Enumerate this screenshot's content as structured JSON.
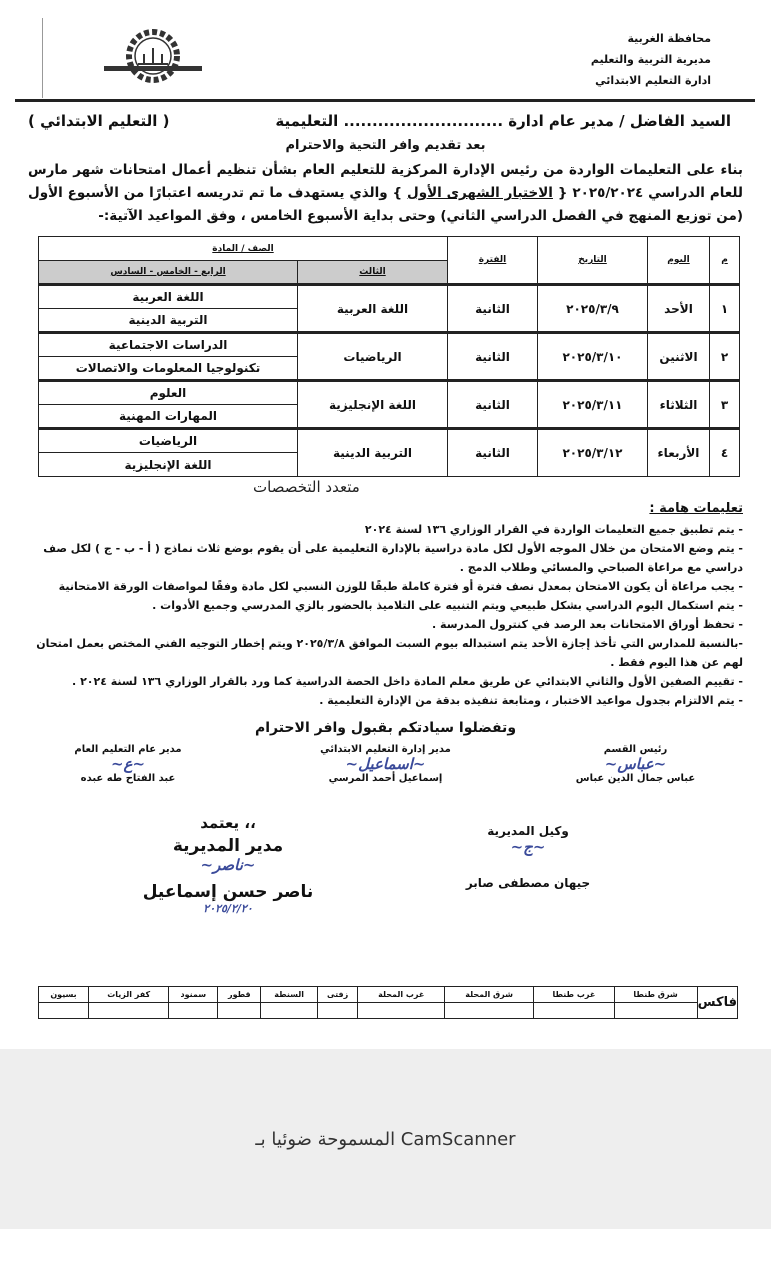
{
  "header": {
    "lines": [
      "محافظة الغربية",
      "مديرية التربية والتعليم",
      "ادارة التعليم الابتدائي"
    ],
    "logo": "directorate-gear-logo"
  },
  "address": {
    "to": "السيد الفاضل / مدير عام ادارة ............................ التعليمية",
    "dept": "( التعليم الابتدائي )"
  },
  "greeting": "بعد تقديم وافر التحية والاحترام",
  "paragraph": {
    "p1": "بناء على التعليمات الواردة من رئيس الإدارة المركزية للتعليم العام بشأن تنظيم أعمال امتحانات شهر مارس للعام الدراسي ٢٠٢٥/٢٠٢٤ {",
    "exam": "الاختبار الشهرى الأول",
    "p2": "} والذي يستهدف ما تم تدريسه اعتبارًا من الأسبوع الأول (من توزيع المنهج في الفصل الدراسي الثاني) وحتى",
    "bold": "بداية الأسبوع الخامس",
    "p3": "، وفق المواعيد الآتية:-"
  },
  "table": {
    "headers": {
      "num": "م",
      "day": "اليوم",
      "date": "التاريخ",
      "period": "الفترة",
      "grade_subject": "الصف / المادة",
      "third": "الثالث",
      "upper": "الرابع - الخامس - السادس"
    },
    "rows": [
      {
        "num": "١",
        "day": "الأحد",
        "date": "٢٠٢٥/٣/٩",
        "period": "الثانية",
        "third": "اللغة العربية",
        "upper": [
          "اللغة العربية",
          "التربية الدينية"
        ]
      },
      {
        "num": "٢",
        "day": "الاثنين",
        "date": "٢٠٢٥/٣/١٠",
        "period": "الثانية",
        "third": "الرياضيات",
        "upper": [
          "الدراسات الاجتماعية",
          "تكنولوجيا المعلومات والاتصالات"
        ]
      },
      {
        "num": "٣",
        "day": "الثلاثاء",
        "date": "٢٠٢٥/٣/١١",
        "period": "الثانية",
        "third": "اللغة الإنجليزية",
        "upper": [
          "العلوم",
          "المهارات المهنية"
        ]
      },
      {
        "num": "٤",
        "day": "الأربعاء",
        "date": "٢٠٢٥/٣/١٢",
        "period": "الثانية",
        "third": "التربية الدينية",
        "upper": [
          "الرياضيات",
          "اللغة الإنجليزية"
        ]
      }
    ]
  },
  "watermark": "متعدد التخصصات",
  "instructions": {
    "title": "تعليمات هامة :",
    "items": [
      "- يتم تطبيق جميع التعليمات الواردة في القرار الوزاري ١٣٦ لسنة ٢٠٢٤",
      "- يتم وضع الامتحان من خلال الموجه الأول لكل مادة دراسية بالإدارة التعليمية على أن يقوم بوضع ثلاث نماذج ( أ - ب - ج ) لكل صف دراسي مع مراعاة الصباحي والمسائي وطلاب الدمج .",
      "- يجب مراعاة أن يكون الامتحان بمعدل نصف فترة أو فترة كاملة طبقًا للوزن النسبي لكل مادة وفقًا لمواصفات الورقة الامتحانية",
      "- يتم استكمال اليوم الدراسي بشكل طبيعي ويتم التنبيه على التلاميذ بالحضور بالزي المدرسي وجميع الأدوات .",
      "- تحفظ أوراق الامتحانات بعد الرصد في كنترول المدرسة .",
      "-بالنسبة للمدارس التي تأخذ إجازة الأحد يتم استبداله بيوم السبت الموافق ٢٠٢٥/٣/٨ ويتم إخطار التوجيه الفني المختص بعمل امتحان لهم عن هذا اليوم فقط .",
      "- تقييم الصفين الأول والثاني الابتدائي عن طريق معلم المادة داخل الحصة الدراسية كما ورد بالقرار الوزاري ١٣٦ لسنة ٢٠٢٤ .",
      "- يتم الالتزام بجدول مواعيد الاختبار ، ومتابعة تنفيذه بدقة من الإدارة التعليمية ."
    ]
  },
  "closing": "وتفضلوا سيادتكم بقبول وافر الاحترام",
  "signatures": {
    "head": {
      "title": "رئيس القسم",
      "name": "عباس جمال الدين عباس"
    },
    "primary": {
      "title": "مدير إدارة التعليم الابتدائي",
      "name": "إسماعيل أحمد المرسي"
    },
    "general": {
      "title": "مدير عام التعليم العام",
      "name": "عبد الفتاح طه عبده"
    },
    "deputy": {
      "title": "وكيل المديرية",
      "name": "جيهان مصطفى صابر"
    },
    "approve": "يعتمد ،،",
    "director": {
      "title": "مدير المديرية",
      "name": "ناصر حسن إسماعيل",
      "date": "٢٠٢٥/٢/٢٠"
    }
  },
  "fax": {
    "label": "فاكس",
    "columns": [
      "شرق طنطا",
      "غرب طنطا",
      "شرق المحلة",
      "غرب المحلة",
      "زفتى",
      "السنطة",
      "قطور",
      "سمنود",
      "كفر الزيات",
      "بسيون"
    ]
  },
  "footer": {
    "brand": "المسموحة ضوئيا بـ CamScanner"
  }
}
